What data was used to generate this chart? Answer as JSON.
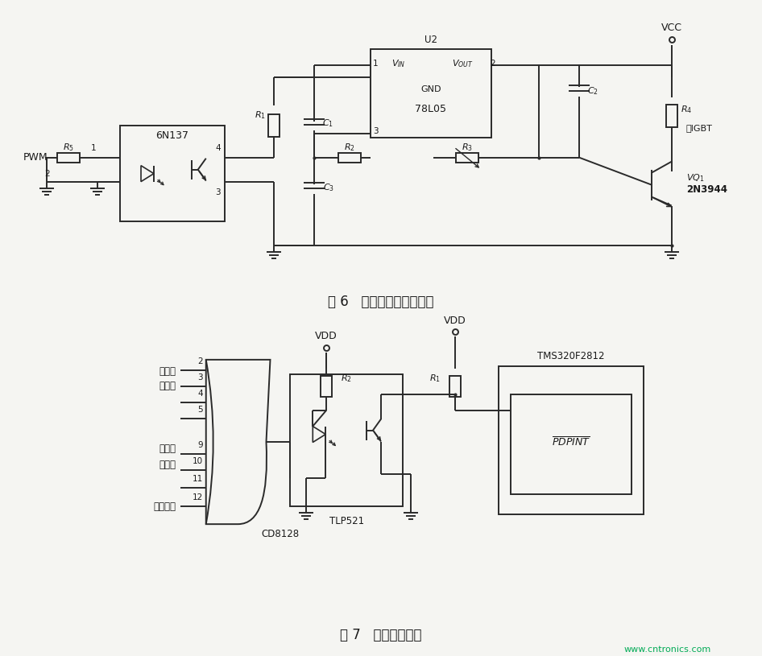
{
  "fig_width": 9.46,
  "fig_height": 8.15,
  "bg_color": "#f5f5f2",
  "line_color": "#2a2a2a",
  "text_color": "#1a1a1a",
  "fig6_caption": "图 6   光电隔离的驱动回路",
  "fig7_caption": "图 7   故障保护电路",
  "watermark": "www.cntronics.com",
  "label_PWM": "PWM",
  "label_6N137": "6N137",
  "label_U2": "U2",
  "label_VIN": "$V_{IN}$",
  "label_VOUT": "$V_{OUT}$",
  "label_GND": "GND",
  "label_78L05": "78L05",
  "label_VCC": "VCC",
  "label_R1": "$R_1$",
  "label_R2": "$R_2$",
  "label_R3": "$R_3$",
  "label_R4": "$R_4$",
  "label_R5": "$R_5$",
  "label_C1": "$C_1$",
  "label_C2": "$C_2$",
  "label_C3": "$C_3$",
  "label_VQ1": "$VQ_1$",
  "label_2N3944": "2N3944",
  "label_IGBT": "去IGBT",
  "label_VDD": "VDD",
  "label_R2b": "$R_2$",
  "label_R1b": "$R_1$",
  "label_CD8128": "CD8128",
  "label_TLP521": "TLP521",
  "label_TMS": "TMS320F2812",
  "label_PDPINT": "$\\overline{PDPINT}$",
  "label_guodianye": "过电压",
  "label_guodianliu": "过电流",
  "label_gezhonggu": "各种故",
  "label_zhangxinhao": "障信号",
  "label_dianjiguore": "电机过热"
}
